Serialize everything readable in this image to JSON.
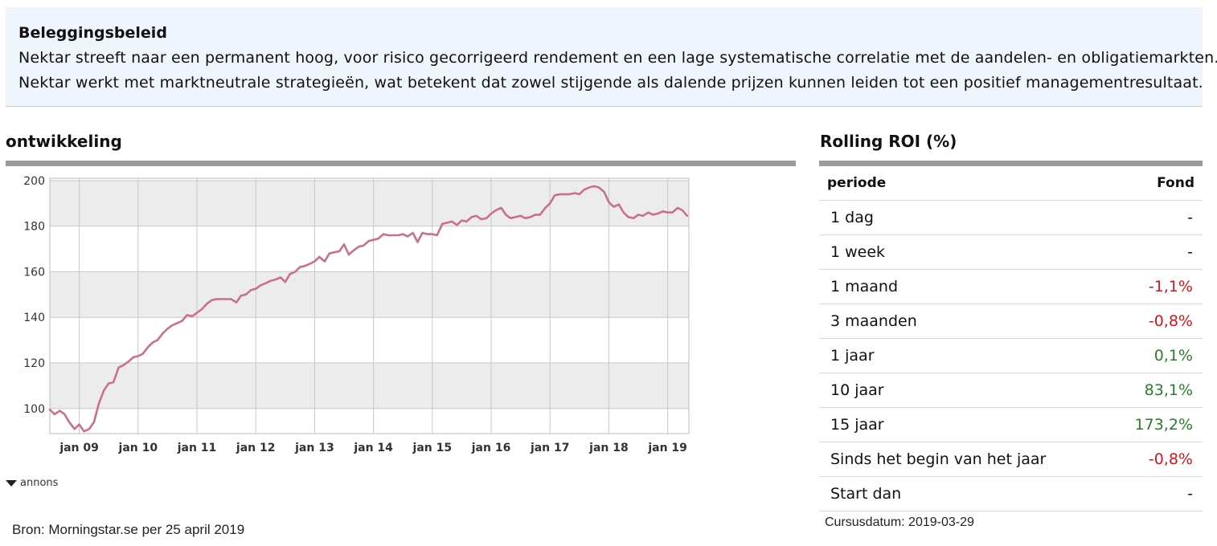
{
  "policy": {
    "title": "Beleggingsbeleid",
    "line1": "Nektar streeft naar een permanent hoog, voor risico gecorrigeerd rendement en een lage systematische correlatie met de aandelen- en obligatiemarkten.",
    "line2": "Nektar werkt met marktneutrale strategieën, wat betekent dat zowel stijgende als dalende prijzen kunnen leiden tot een positief managementresultaat."
  },
  "chart_section": {
    "title": "ontwikkeling",
    "annons_label": "annons",
    "source": "Bron: Morningstar.se per 25 april 2019"
  },
  "roi": {
    "title": "Rolling ROI (%)",
    "col_period": "periode",
    "col_fund": "Fond",
    "rows": [
      {
        "period": "1 dag",
        "value": "-",
        "tone": "neutral"
      },
      {
        "period": "1 week",
        "value": "-",
        "tone": "neutral"
      },
      {
        "period": "1 maand",
        "value": "-1,1%",
        "tone": "neg"
      },
      {
        "period": "3 maanden",
        "value": "-0,8%",
        "tone": "neg"
      },
      {
        "period": "1 jaar",
        "value": "0,1%",
        "tone": "pos"
      },
      {
        "period": "10 jaar",
        "value": "83,1%",
        "tone": "pos"
      },
      {
        "period": "15 jaar",
        "value": "173,2%",
        "tone": "pos"
      },
      {
        "period": "Sinds het begin van het jaar",
        "value": "-0,8%",
        "tone": "neg"
      },
      {
        "period": "Start dan",
        "value": "-",
        "tone": "neutral"
      }
    ],
    "cursus_date": "Cursusdatum: 2019-03-29"
  },
  "colors": {
    "line": "#c9708c",
    "negative": "#d6141e",
    "positive": "#2c7d2c",
    "policy_bg": "#eef5fc",
    "band_grey": "#ececec"
  },
  "chart_data": {
    "type": "line",
    "x_tick_labels": [
      "jan 09",
      "jan 10",
      "jan 11",
      "jan 12",
      "jan 13",
      "jan 14",
      "jan 15",
      "jan 16",
      "jan 17",
      "jan 18",
      "jan 19"
    ],
    "y_tick_labels": [
      "100",
      "120",
      "140",
      "160",
      "180",
      "200"
    ],
    "ylim": [
      89,
      201
    ],
    "xlim": [
      2008.5,
      2019.36
    ],
    "grid": true,
    "series": [
      {
        "points": [
          [
            2008.5,
            99.5
          ],
          [
            2008.58,
            97.5
          ],
          [
            2008.67,
            99.0
          ],
          [
            2008.75,
            97.5
          ],
          [
            2008.83,
            94.0
          ],
          [
            2008.92,
            91.0
          ],
          [
            2009.0,
            93.0
          ],
          [
            2009.08,
            90.0
          ],
          [
            2009.17,
            91.0
          ],
          [
            2009.25,
            94.0
          ],
          [
            2009.33,
            102.0
          ],
          [
            2009.42,
            108.0
          ],
          [
            2009.5,
            111.0
          ],
          [
            2009.58,
            111.5
          ],
          [
            2009.67,
            118.0
          ],
          [
            2009.75,
            119.0
          ],
          [
            2009.83,
            120.5
          ],
          [
            2009.92,
            122.5
          ],
          [
            2010.0,
            123.0
          ],
          [
            2010.08,
            124.0
          ],
          [
            2010.17,
            127.0
          ],
          [
            2010.25,
            129.0
          ],
          [
            2010.33,
            130.0
          ],
          [
            2010.42,
            133.0
          ],
          [
            2010.5,
            135.0
          ],
          [
            2010.58,
            136.5
          ],
          [
            2010.67,
            137.5
          ],
          [
            2010.75,
            138.5
          ],
          [
            2010.83,
            141.0
          ],
          [
            2010.92,
            140.5
          ],
          [
            2011.0,
            142.0
          ],
          [
            2011.08,
            143.5
          ],
          [
            2011.17,
            146.0
          ],
          [
            2011.25,
            147.5
          ],
          [
            2011.33,
            148.0
          ],
          [
            2011.42,
            148.0
          ],
          [
            2011.5,
            148.0
          ],
          [
            2011.58,
            148.0
          ],
          [
            2011.67,
            146.5
          ],
          [
            2011.75,
            149.5
          ],
          [
            2011.83,
            150.0
          ],
          [
            2011.92,
            152.0
          ],
          [
            2012.0,
            152.5
          ],
          [
            2012.08,
            154.0
          ],
          [
            2012.17,
            155.0
          ],
          [
            2012.25,
            156.0
          ],
          [
            2012.33,
            156.5
          ],
          [
            2012.42,
            157.5
          ],
          [
            2012.5,
            155.5
          ],
          [
            2012.58,
            159.0
          ],
          [
            2012.67,
            160.0
          ],
          [
            2012.75,
            162.0
          ],
          [
            2012.83,
            162.5
          ],
          [
            2012.92,
            163.5
          ],
          [
            2013.0,
            164.5
          ],
          [
            2013.08,
            166.5
          ],
          [
            2013.17,
            164.5
          ],
          [
            2013.25,
            168.0
          ],
          [
            2013.33,
            168.5
          ],
          [
            2013.42,
            169.0
          ],
          [
            2013.5,
            172.0
          ],
          [
            2013.58,
            167.5
          ],
          [
            2013.67,
            169.5
          ],
          [
            2013.75,
            171.0
          ],
          [
            2013.83,
            171.5
          ],
          [
            2013.92,
            173.5
          ],
          [
            2014.0,
            174.0
          ],
          [
            2014.08,
            174.5
          ],
          [
            2014.17,
            176.5
          ],
          [
            2014.25,
            176.0
          ],
          [
            2014.33,
            176.0
          ],
          [
            2014.42,
            176.0
          ],
          [
            2014.5,
            176.5
          ],
          [
            2014.58,
            175.5
          ],
          [
            2014.67,
            177.0
          ],
          [
            2014.75,
            173.0
          ],
          [
            2014.83,
            177.0
          ],
          [
            2014.92,
            176.5
          ],
          [
            2015.0,
            176.5
          ],
          [
            2015.08,
            176.0
          ],
          [
            2015.17,
            181.0
          ],
          [
            2015.25,
            181.5
          ],
          [
            2015.33,
            182.0
          ],
          [
            2015.42,
            180.5
          ],
          [
            2015.5,
            182.5
          ],
          [
            2015.58,
            182.0
          ],
          [
            2015.67,
            184.0
          ],
          [
            2015.75,
            184.5
          ],
          [
            2015.83,
            183.0
          ],
          [
            2015.92,
            183.5
          ],
          [
            2016.0,
            185.5
          ],
          [
            2016.08,
            187.0
          ],
          [
            2016.17,
            188.0
          ],
          [
            2016.25,
            185.0
          ],
          [
            2016.33,
            183.5
          ],
          [
            2016.42,
            184.0
          ],
          [
            2016.5,
            184.5
          ],
          [
            2016.58,
            183.5
          ],
          [
            2016.67,
            184.0
          ],
          [
            2016.75,
            185.0
          ],
          [
            2016.83,
            185.0
          ],
          [
            2016.92,
            188.0
          ],
          [
            2017.0,
            190.0
          ],
          [
            2017.08,
            193.5
          ],
          [
            2017.17,
            194.0
          ],
          [
            2017.25,
            194.0
          ],
          [
            2017.33,
            194.0
          ],
          [
            2017.42,
            194.5
          ],
          [
            2017.5,
            194.0
          ],
          [
            2017.58,
            196.0
          ],
          [
            2017.67,
            197.0
          ],
          [
            2017.75,
            197.5
          ],
          [
            2017.83,
            197.0
          ],
          [
            2017.92,
            195.0
          ],
          [
            2018.0,
            190.5
          ],
          [
            2018.08,
            188.5
          ],
          [
            2018.17,
            189.5
          ],
          [
            2018.25,
            186.0
          ],
          [
            2018.33,
            184.0
          ],
          [
            2018.42,
            183.5
          ],
          [
            2018.5,
            185.0
          ],
          [
            2018.58,
            184.5
          ],
          [
            2018.67,
            186.0
          ],
          [
            2018.75,
            185.0
          ],
          [
            2018.83,
            185.5
          ],
          [
            2018.92,
            186.5
          ],
          [
            2019.0,
            186.0
          ],
          [
            2019.08,
            186.0
          ],
          [
            2019.17,
            188.0
          ],
          [
            2019.25,
            187.0
          ],
          [
            2019.33,
            184.5
          ]
        ]
      }
    ]
  }
}
